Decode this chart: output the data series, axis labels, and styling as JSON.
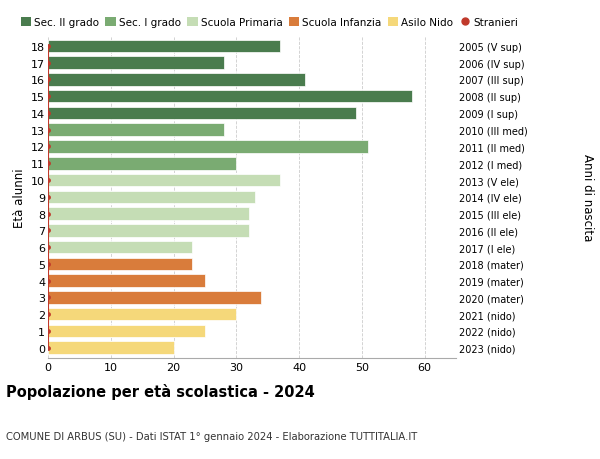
{
  "ages": [
    18,
    17,
    16,
    15,
    14,
    13,
    12,
    11,
    10,
    9,
    8,
    7,
    6,
    5,
    4,
    3,
    2,
    1,
    0
  ],
  "values": [
    37,
    28,
    41,
    58,
    49,
    28,
    51,
    30,
    37,
    33,
    32,
    32,
    23,
    23,
    25,
    34,
    30,
    25,
    20
  ],
  "right_labels": [
    "2005 (V sup)",
    "2006 (IV sup)",
    "2007 (III sup)",
    "2008 (II sup)",
    "2009 (I sup)",
    "2010 (III med)",
    "2011 (II med)",
    "2012 (I med)",
    "2013 (V ele)",
    "2014 (IV ele)",
    "2015 (III ele)",
    "2016 (II ele)",
    "2017 (I ele)",
    "2018 (mater)",
    "2019 (mater)",
    "2020 (mater)",
    "2021 (nido)",
    "2022 (nido)",
    "2023 (nido)"
  ],
  "colors": [
    "#4a7c4e",
    "#4a7c4e",
    "#4a7c4e",
    "#4a7c4e",
    "#4a7c4e",
    "#7aab72",
    "#7aab72",
    "#7aab72",
    "#c5ddb5",
    "#c5ddb5",
    "#c5ddb5",
    "#c5ddb5",
    "#c5ddb5",
    "#d97c3b",
    "#d97c3b",
    "#d97c3b",
    "#f5d87a",
    "#f5d87a",
    "#f5d87a"
  ],
  "legend_labels": [
    "Sec. II grado",
    "Sec. I grado",
    "Scuola Primaria",
    "Scuola Infanzia",
    "Asilo Nido",
    "Stranieri"
  ],
  "legend_colors": [
    "#4a7c4e",
    "#7aab72",
    "#c5ddb5",
    "#d97c3b",
    "#f5d87a",
    "#c0392b"
  ],
  "ylabel": "Età alunni",
  "ylabel_right": "Anni di nascita",
  "title": "Popolazione per età scolastica - 2024",
  "subtitle": "COMUNE DI ARBUS (SU) - Dati ISTAT 1° gennaio 2024 - Elaborazione TUTTITALIA.IT",
  "xlim": [
    0,
    65
  ],
  "xticks": [
    0,
    10,
    20,
    30,
    40,
    50,
    60
  ],
  "stranieri_color": "#c0392b",
  "bar_height": 0.75,
  "background_color": "#ffffff",
  "grid_color": "#cccccc"
}
